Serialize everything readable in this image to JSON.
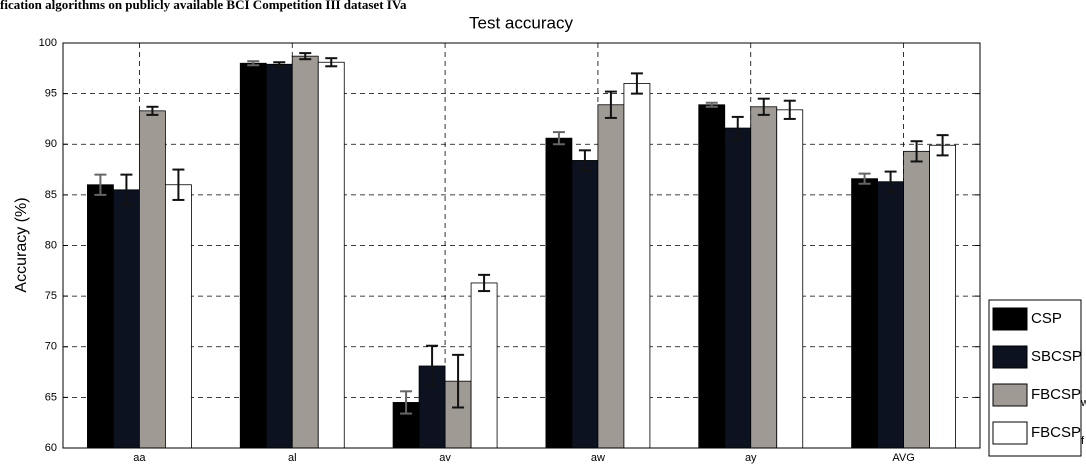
{
  "chart_data": {
    "type": "bar",
    "caption": "fication algorithms on publicly available BCI Competition III dataset IVa",
    "title": "Test accuracy",
    "ylabel": "Accuracy (%)",
    "categories": [
      "aa",
      "al",
      "av",
      "aw",
      "ay",
      "AVG"
    ],
    "series": [
      {
        "name": "CSP",
        "color": "#000000",
        "values": [
          86,
          98,
          64.5,
          90.6,
          93.9,
          86.6
        ],
        "errors": [
          1,
          0.2,
          1.1,
          0.6,
          0.2,
          0.5
        ]
      },
      {
        "name": "SBCSP",
        "color": "#0d1220",
        "values": [
          85.5,
          97.9,
          68.1,
          88.4,
          91.6,
          86.3
        ],
        "errors": [
          1.5,
          0.2,
          2,
          1,
          1.1,
          1
        ]
      },
      {
        "name": "FBCSPw",
        "color": "#a09a94",
        "values": [
          93.3,
          98.7,
          66.6,
          93.9,
          93.7,
          89.3
        ],
        "errors": [
          0.4,
          0.3,
          2.6,
          1.3,
          0.8,
          1
        ]
      },
      {
        "name": "FBCSPf",
        "color": "#ffffff",
        "values": [
          86,
          98.1,
          76.3,
          96,
          93.4,
          89.9
        ],
        "errors": [
          1.5,
          0.4,
          0.8,
          1,
          0.9,
          1
        ]
      }
    ],
    "ylim": [
      60,
      100
    ],
    "yticks": [
      60,
      65,
      70,
      75,
      80,
      85,
      90,
      95,
      100
    ],
    "grid": true,
    "legend": "lower right"
  }
}
